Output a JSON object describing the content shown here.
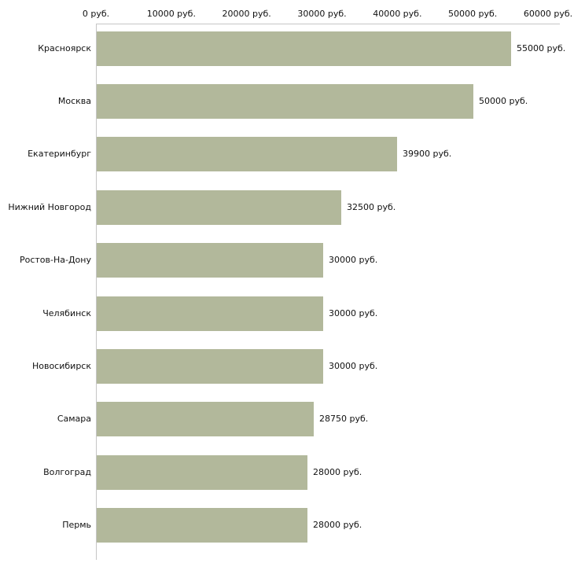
{
  "chart_data": {
    "type": "bar",
    "orientation": "horizontal",
    "title": "",
    "xlabel": "",
    "ylabel": "",
    "unit": "руб.",
    "categories": [
      "Красноярск",
      "Москва",
      "Екатеринбург",
      "Нижний Новгород",
      "Ростов-На-Дону",
      "Челябинск",
      "Новосибирск",
      "Самара",
      "Волгоград",
      "Пермь"
    ],
    "values": [
      55000,
      50000,
      39900,
      32500,
      30000,
      30000,
      30000,
      28750,
      28000,
      28000
    ],
    "value_labels": [
      "55000 руб.",
      "50000 руб.",
      "39900 руб.",
      "32500 руб.",
      "30000 руб.",
      "30000 руб.",
      "30000 руб.",
      "28750 руб.",
      "28000 руб.",
      "28000 руб."
    ],
    "x_ticks": [
      {
        "value": 0,
        "label": "0 руб."
      },
      {
        "value": 10000,
        "label": "10000 руб."
      },
      {
        "value": 20000,
        "label": "20000 руб."
      },
      {
        "value": 30000,
        "label": "30000 руб."
      },
      {
        "value": 40000,
        "label": "40000 руб."
      },
      {
        "value": 50000,
        "label": "50000 руб."
      },
      {
        "value": 60000,
        "label": "60000 руб."
      }
    ],
    "xlim": [
      0,
      60000
    ],
    "grid": false,
    "legend": false,
    "bar_color": "#b2b89b",
    "axis_color": "#c6c6c6",
    "background_color": "#ffffff"
  }
}
